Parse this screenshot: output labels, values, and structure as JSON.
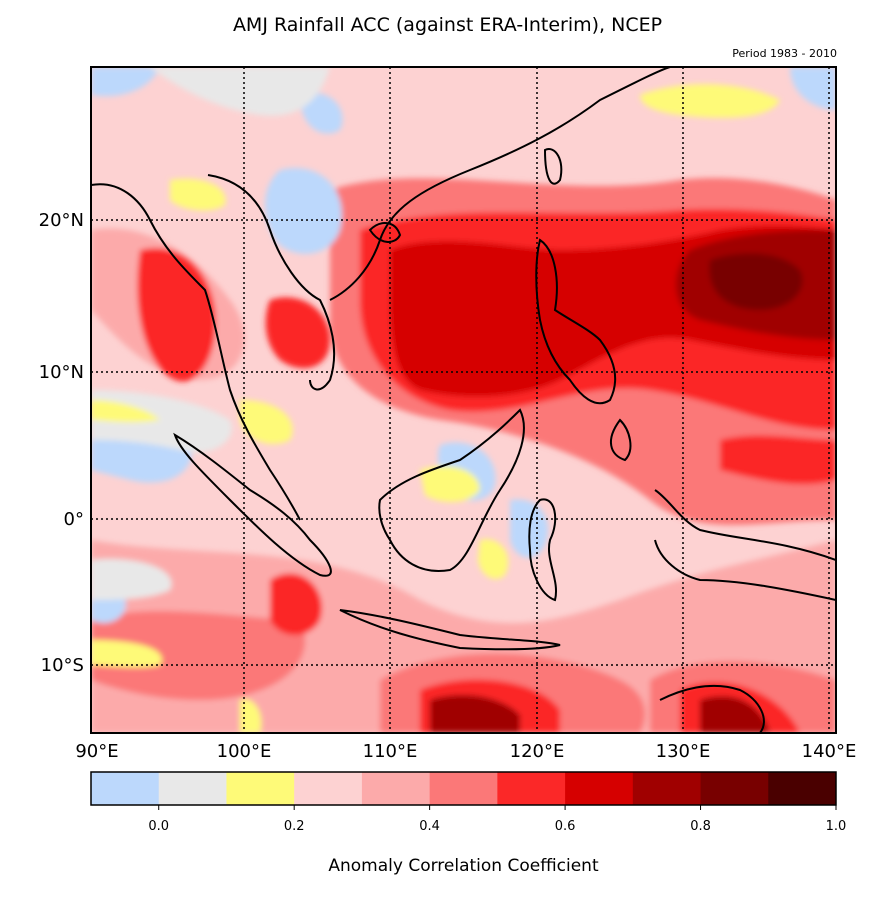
{
  "title": "AMJ Rainfall ACC (against ERA-Interim), NCEP",
  "subtitle": "Period 1983 - 2010",
  "map": {
    "lon_range": [
      90,
      140
    ],
    "lat_range": [
      -14.5,
      30
    ],
    "lon_ticks": [
      "90°E",
      "100°E",
      "110°E",
      "120°E",
      "130°E",
      "140°E"
    ],
    "lat_ticks": [
      "20°N",
      "10°N",
      "0°",
      "10°S"
    ],
    "gridlines": "dotted"
  },
  "colorbar": {
    "label": "Anomaly Correlation Coefficient",
    "tick_labels": [
      "0.0",
      "0.2",
      "0.4",
      "0.6",
      "0.8",
      "1.0"
    ],
    "bins": [
      {
        "range": "<0.0",
        "color": "#bcd8fc"
      },
      {
        "range": "0.0-0.1",
        "color": "#e8e8e8"
      },
      {
        "range": "0.1-0.2",
        "color": "#fefa78"
      },
      {
        "range": "0.2-0.3",
        "color": "#fdd2d2"
      },
      {
        "range": "0.3-0.4",
        "color": "#fcaaaa"
      },
      {
        "range": "0.4-0.5",
        "color": "#fb7878"
      },
      {
        "range": "0.5-0.6",
        "color": "#fb2828"
      },
      {
        "range": "0.6-0.7",
        "color": "#d60000"
      },
      {
        "range": "0.7-0.8",
        "color": "#a00000"
      },
      {
        "range": "0.8-0.9",
        "color": "#780000"
      },
      {
        "range": "0.9-1.0",
        "color": "#4a0000"
      }
    ]
  }
}
